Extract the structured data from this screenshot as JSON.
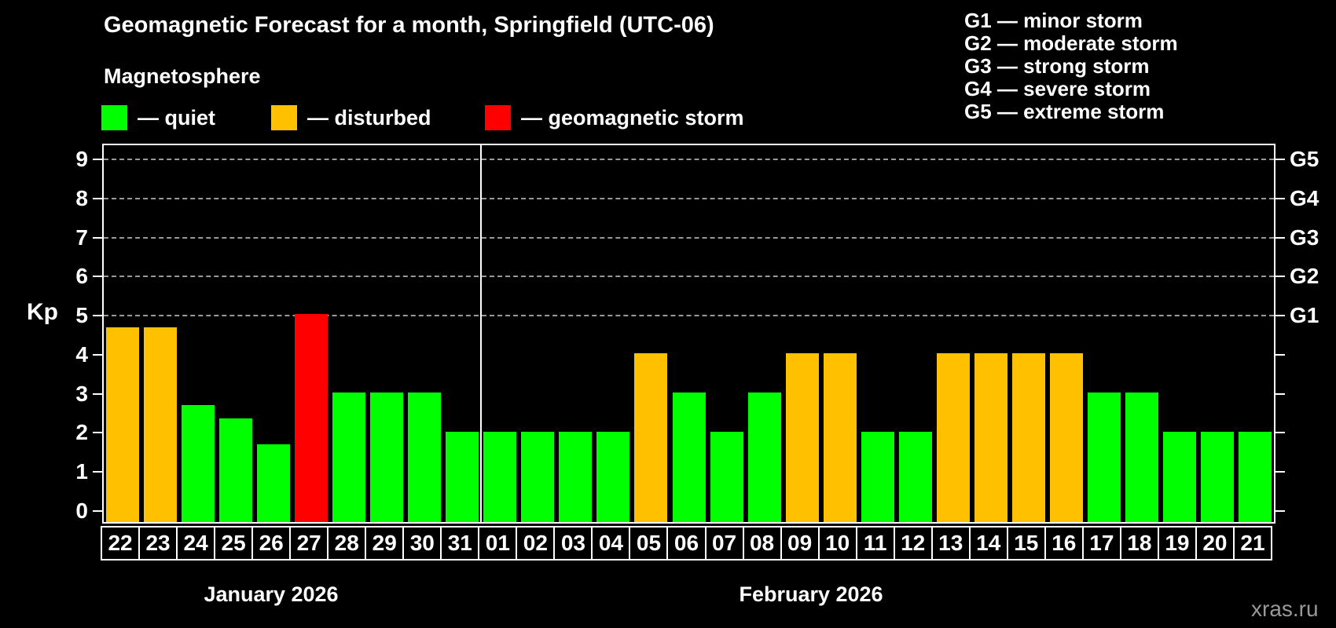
{
  "title": "Geomagnetic Forecast for a month, Springfield (UTC-06)",
  "watermark": "xras.ru",
  "storm_scale_legend": {
    "lines": [
      "G1 — minor storm",
      "G2 — moderate storm",
      "G3 — strong storm",
      "G4 — severe storm",
      "G5 — extreme storm"
    ]
  },
  "legend": {
    "heading": "Magnetosphere",
    "items": [
      {
        "key": "quiet",
        "label": "— quiet",
        "color": "#00ff00"
      },
      {
        "key": "disturbed",
        "label": "— disturbed",
        "color": "#ffc000"
      },
      {
        "key": "storm",
        "label": "— geomagnetic storm",
        "color": "#ff0000"
      }
    ]
  },
  "chart_data": {
    "type": "bar",
    "title": "Geomagnetic Forecast for a month, Springfield (UTC-06)",
    "ylabel": "Kp",
    "ylim": [
      0,
      9
    ],
    "yticks": [
      0,
      1,
      2,
      3,
      4,
      5,
      6,
      7,
      8,
      9
    ],
    "gridlines_at": [
      5,
      6,
      7,
      8,
      9
    ],
    "grid": "dashed horizontal at Kp 5-9 only",
    "right_axis_labels": [
      {
        "kp": 5,
        "label": "G1"
      },
      {
        "kp": 6,
        "label": "G2"
      },
      {
        "kp": 7,
        "label": "G3"
      },
      {
        "kp": 8,
        "label": "G4"
      },
      {
        "kp": 9,
        "label": "G5"
      }
    ],
    "months": [
      {
        "label": "January 2026",
        "days": 10
      },
      {
        "label": "February 2026",
        "days": 21
      }
    ],
    "categories": [
      "22",
      "23",
      "24",
      "25",
      "26",
      "27",
      "28",
      "29",
      "30",
      "31",
      "01",
      "02",
      "03",
      "04",
      "05",
      "06",
      "07",
      "08",
      "09",
      "10",
      "11",
      "12",
      "13",
      "14",
      "15",
      "16",
      "17",
      "18",
      "19",
      "20",
      "21"
    ],
    "values": [
      4.67,
      4.67,
      2.67,
      2.33,
      1.67,
      5.0,
      3,
      3,
      3,
      2,
      2,
      2,
      2,
      2,
      4,
      3,
      2,
      3,
      4,
      4,
      2,
      2,
      4,
      4,
      4,
      4,
      3,
      3,
      2,
      2,
      2
    ],
    "statuses": [
      "disturbed",
      "disturbed",
      "quiet",
      "quiet",
      "quiet",
      "storm",
      "quiet",
      "quiet",
      "quiet",
      "quiet",
      "quiet",
      "quiet",
      "quiet",
      "quiet",
      "disturbed",
      "quiet",
      "quiet",
      "quiet",
      "disturbed",
      "disturbed",
      "quiet",
      "quiet",
      "disturbed",
      "disturbed",
      "disturbed",
      "disturbed",
      "quiet",
      "quiet",
      "quiet",
      "quiet",
      "quiet"
    ],
    "colors": {
      "quiet": "#00ff00",
      "disturbed": "#ffc000",
      "storm": "#ff0000"
    },
    "legend_position": "top-left"
  }
}
